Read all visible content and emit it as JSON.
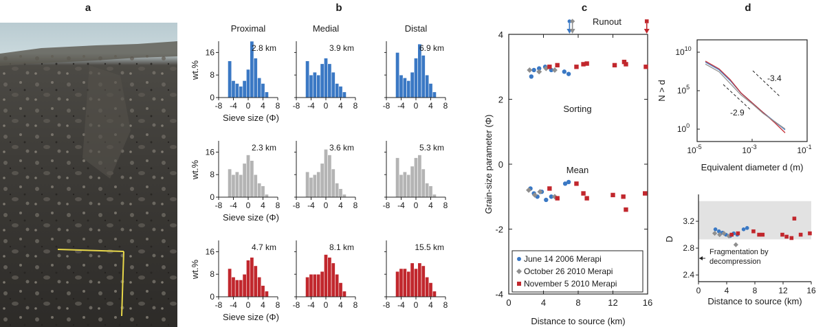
{
  "panel_labels": {
    "a": "a",
    "b": "b",
    "c": "c",
    "d": "d"
  },
  "colors": {
    "blue": "#3a78c4",
    "gray": "#b4b4b4",
    "red": "#c1272d",
    "dgray": "#8f8f8f",
    "text": "#1a1a1a"
  },
  "panel_a": {
    "photo": "photograph of deposit section with yellow scale bar"
  },
  "chart_data": [
    {
      "id": "histograms",
      "type": "bar",
      "column_titles": [
        "Proximal",
        "Medial",
        "Distal"
      ],
      "xlabel": "Sieve size (Φ)",
      "ylabel": "wt.%",
      "xticks": [
        "-8",
        "-4",
        "0",
        "4",
        "8"
      ],
      "yticks": [
        "0",
        "8",
        "16"
      ],
      "bins_phi": [
        -5,
        -4,
        -3,
        -2,
        -1,
        0,
        1,
        2,
        3,
        4,
        5
      ],
      "ylim": [
        0,
        20
      ],
      "xlim": [
        -8,
        8
      ],
      "panels": [
        {
          "row": "June 14 2006 Merapi",
          "color_key": "blue",
          "items": [
            {
              "dist": "2.8 km",
              "values": [
                13,
                6,
                5,
                4,
                6,
                10,
                20,
                14,
                7,
                5,
                2
              ]
            },
            {
              "dist": "3.9 km",
              "values": [
                13,
                8,
                9,
                8,
                12,
                14,
                12,
                9,
                5,
                4,
                2
              ]
            },
            {
              "dist": "6.9 km",
              "values": [
                16,
                8,
                7,
                6,
                9,
                14,
                19,
                15,
                8,
                5,
                2
              ]
            }
          ]
        },
        {
          "row": "October 26 2010 Merapi",
          "color_key": "gray",
          "items": [
            {
              "dist": "2.3 km",
              "values": [
                10,
                8,
                9,
                8,
                12,
                15,
                13,
                8,
                5,
                4,
                1
              ]
            },
            {
              "dist": "3.6 km",
              "values": [
                9,
                7,
                8,
                9,
                12,
                17,
                15,
                10,
                5,
                3,
                1
              ]
            },
            {
              "dist": "5.3 km",
              "values": [
                14,
                8,
                9,
                8,
                11,
                14,
                15,
                10,
                5,
                4,
                1
              ]
            }
          ]
        },
        {
          "row": "November 5 2010 Merapi",
          "color_key": "red",
          "items": [
            {
              "dist": "4.7 km",
              "values": [
                10,
                7,
                6,
                6,
                8,
                13,
                14,
                11,
                7,
                4,
                2
              ]
            },
            {
              "dist": "8.1 km",
              "values": [
                7,
                8,
                8,
                8,
                9,
                15,
                14,
                12,
                8,
                5,
                2
              ]
            },
            {
              "dist": "15.5 km",
              "values": [
                9,
                10,
                10,
                9,
                12,
                10,
                12,
                11,
                7,
                5,
                2
              ]
            }
          ]
        }
      ]
    },
    {
      "id": "grain_size_vs_distance",
      "type": "scatter",
      "xlabel": "Distance to source (km)",
      "ylabel": "Grain-size parameter (Φ)",
      "xlim": [
        0,
        16
      ],
      "ylim": [
        -4,
        4
      ],
      "xticks": [
        "0",
        "4",
        "8",
        "12",
        "16"
      ],
      "yticks": [
        "-4",
        "-2",
        "0",
        "2",
        "4"
      ],
      "annotations": {
        "sorting": "Sorting",
        "mean": "Mean",
        "runout": "Runout"
      },
      "runout_km": {
        "June 14 2006 Merapi": 7.0,
        "October 26 2010 Merapi": 7.1,
        "November 5 2010 Merapi": 15.9
      },
      "series": [
        {
          "name": "June 14 2006 Merapi",
          "color_key": "blue",
          "marker": "circle",
          "sorting": [
            [
              2.6,
              2.7
            ],
            [
              2.9,
              2.9
            ],
            [
              3.5,
              2.95
            ],
            [
              4.2,
              3.0
            ],
            [
              4.9,
              2.9
            ],
            [
              6.4,
              2.85
            ],
            [
              6.9,
              2.78
            ]
          ],
          "mean": [
            [
              2.5,
              -0.75
            ],
            [
              2.9,
              -0.9
            ],
            [
              3.3,
              -1.0
            ],
            [
              3.8,
              -0.85
            ],
            [
              4.3,
              -1.1
            ],
            [
              4.9,
              -1.0
            ],
            [
              6.5,
              -0.6
            ],
            [
              6.9,
              -0.55
            ]
          ]
        },
        {
          "name": "October 26 2010 Merapi",
          "color_key": "dgray",
          "marker": "diamond",
          "sorting": [
            [
              2.4,
              2.9
            ],
            [
              3.5,
              2.85
            ],
            [
              4.3,
              2.95
            ],
            [
              5.3,
              2.9
            ]
          ],
          "mean": [
            [
              2.3,
              -0.8
            ],
            [
              3.0,
              -0.95
            ],
            [
              3.6,
              -0.85
            ],
            [
              5.3,
              -1.0
            ]
          ]
        },
        {
          "name": "November 5 2010 Merapi",
          "color_key": "red",
          "marker": "square",
          "sorting": [
            [
              4.7,
              3.0
            ],
            [
              5.6,
              3.05
            ],
            [
              7.8,
              3.0
            ],
            [
              8.6,
              3.08
            ],
            [
              9.0,
              3.1
            ],
            [
              12.2,
              3.05
            ],
            [
              13.3,
              3.15
            ],
            [
              13.5,
              3.08
            ],
            [
              15.8,
              3.0
            ]
          ],
          "mean": [
            [
              4.7,
              -0.75
            ],
            [
              5.6,
              -1.05
            ],
            [
              7.8,
              -0.6
            ],
            [
              8.6,
              -0.9
            ],
            [
              9.0,
              -1.05
            ],
            [
              12.0,
              -0.95
            ],
            [
              13.2,
              -1.0
            ],
            [
              13.5,
              -1.4
            ],
            [
              15.7,
              -0.9
            ]
          ]
        }
      ]
    },
    {
      "id": "cumulative_number",
      "type": "line",
      "xlabel": "Equivalent diameter d (m)",
      "ylabel": "N > d",
      "xlog_range": [
        -5,
        -1
      ],
      "xticks": [
        {
          "base": "10",
          "exp": "-5"
        },
        {
          "base": "10",
          "exp": "-3"
        },
        {
          "base": "10",
          "exp": "-1"
        }
      ],
      "yticks": [
        {
          "base": "10",
          "exp": "10"
        },
        {
          "base": "10",
          "exp": "5"
        },
        {
          "base": "10",
          "exp": "0"
        }
      ],
      "slopes": [
        "-3.4",
        "-2.9"
      ],
      "curves_log10": [
        {
          "color_key": "blue",
          "points": [
            [
              -4.7,
              8.2
            ],
            [
              -4.2,
              7.4
            ],
            [
              -3.8,
              6.3
            ],
            [
              -3.4,
              5.0
            ],
            [
              -3.0,
              4.0
            ],
            [
              -2.6,
              3.0
            ],
            [
              -2.2,
              2.1
            ],
            [
              -1.8,
              1.2
            ]
          ]
        },
        {
          "color_key": "red",
          "points": [
            [
              -4.7,
              8.3
            ],
            [
              -4.2,
              7.5
            ],
            [
              -3.8,
              6.4
            ],
            [
              -3.4,
              5.0
            ],
            [
              -3.0,
              4.0
            ],
            [
              -2.6,
              3.0
            ],
            [
              -2.2,
              2.0
            ],
            [
              -1.8,
              0.9
            ]
          ]
        },
        {
          "color_key": "dgray",
          "points": [
            [
              -4.7,
              8.0
            ],
            [
              -4.2,
              7.2
            ],
            [
              -3.8,
              6.0
            ],
            [
              -3.4,
              4.8
            ],
            [
              -3.0,
              3.9
            ],
            [
              -2.6,
              2.9
            ],
            [
              -2.2,
              2.1
            ],
            [
              -1.8,
              1.3
            ]
          ]
        }
      ]
    },
    {
      "id": "fractal_dimension",
      "type": "scatter",
      "xlabel": "Distance to source (km)",
      "ylabel": "D",
      "xlim": [
        0,
        16
      ],
      "ylim": [
        2.3,
        3.6
      ],
      "xticks": [
        "0",
        "4",
        "8",
        "12",
        "16"
      ],
      "yticks": [
        "2.4",
        "2.8",
        "3.2"
      ],
      "shaded_band": [
        2.93,
        3.5
      ],
      "annotation": [
        "Fragmentation by",
        "decompression"
      ],
      "series": [
        {
          "name": "June 14 2006 Merapi",
          "color_key": "blue",
          "marker": "circle",
          "points": [
            [
              2.4,
              3.08
            ],
            [
              2.9,
              3.05
            ],
            [
              3.4,
              3.03
            ],
            [
              3.9,
              3.0
            ],
            [
              4.5,
              2.98
            ],
            [
              5.0,
              3.02
            ],
            [
              5.5,
              3.0
            ],
            [
              6.4,
              3.08
            ],
            [
              6.9,
              3.1
            ]
          ]
        },
        {
          "name": "October 26 2010 Merapi",
          "color_key": "dgray",
          "marker": "diamond",
          "points": [
            [
              2.3,
              3.02
            ],
            [
              3.0,
              3.0
            ],
            [
              3.6,
              3.02
            ],
            [
              4.3,
              2.98
            ],
            [
              5.3,
              2.85
            ]
          ]
        },
        {
          "name": "November 5 2010 Merapi",
          "color_key": "red",
          "marker": "square",
          "points": [
            [
              4.7,
              3.0
            ],
            [
              5.6,
              3.02
            ],
            [
              7.8,
              3.05
            ],
            [
              8.6,
              3.0
            ],
            [
              9.1,
              3.0
            ],
            [
              11.9,
              3.0
            ],
            [
              12.5,
              2.97
            ],
            [
              13.2,
              2.95
            ],
            [
              13.6,
              3.24
            ],
            [
              14.5,
              3.0
            ],
            [
              15.8,
              3.02
            ]
          ]
        }
      ]
    }
  ]
}
